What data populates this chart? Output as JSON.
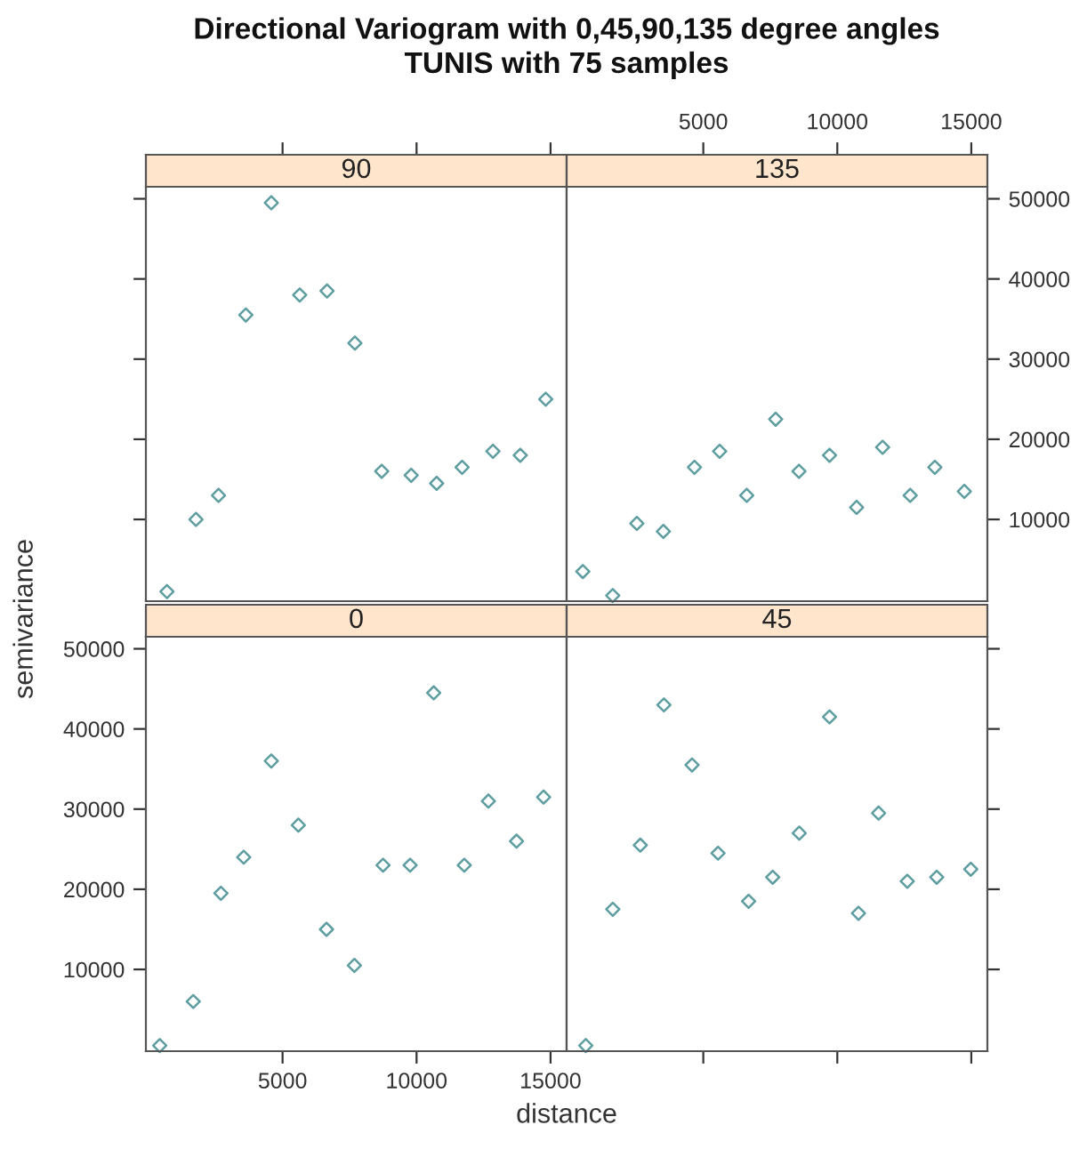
{
  "chart_data": [
    {
      "type": "scatter",
      "title": "90",
      "annotations": [
        "Directional Variogram with 0,45,90,135 degree angles\nTUNIS with 75 samples"
      ],
      "tick_labels": false,
      "marker": "diamond",
      "grid": false,
      "xlim": [
        -100,
        15600
      ],
      "ylim": [
        -200,
        51500
      ],
      "xticks": [
        5000,
        10000,
        15000
      ],
      "yticks": [
        10000,
        20000,
        30000,
        40000,
        50000
      ],
      "series": [
        {
          "color": "#5f9ea0",
          "x": [
            686,
            1770,
            2610,
            3630,
            4580,
            5640,
            6660,
            7700,
            8700,
            9800,
            10750,
            11700,
            12850,
            13870,
            14820
          ],
          "values": [
            1000,
            10000,
            13000,
            35500,
            49500,
            38000,
            38500,
            32000,
            16000,
            15500,
            14500,
            16500,
            18500,
            18000,
            25000
          ]
        }
      ]
    },
    {
      "type": "scatter",
      "title": "135",
      "marker": "diamond",
      "grid": false,
      "xlim": [
        -100,
        15600
      ],
      "ylim": [
        -200,
        51500
      ],
      "xticks": [
        5000,
        10000,
        15000
      ],
      "yticks": [
        10000,
        20000,
        30000,
        40000,
        50000
      ],
      "series": [
        {
          "color": "#5f9ea0",
          "x": [
            504,
            1620,
            2520,
            3510,
            4670,
            5610,
            6620,
            7700,
            8570,
            9710,
            10720,
            11690,
            12720,
            13640,
            14740
          ],
          "values": [
            3500,
            500,
            9500,
            8500,
            16500,
            18500,
            13000,
            22500,
            16000,
            18000,
            11500,
            19000,
            13000,
            16500,
            13500
          ]
        }
      ]
    },
    {
      "type": "scatter",
      "title": "0",
      "xlabel": "distance",
      "ylabel": "semivariance",
      "marker": "diamond",
      "grid": false,
      "xlim": [
        -100,
        15600
      ],
      "ylim": [
        -200,
        51500
      ],
      "xticks": [
        5000,
        10000,
        15000
      ],
      "yticks": [
        10000,
        20000,
        30000,
        40000,
        50000
      ],
      "series": [
        {
          "color": "#5f9ea0",
          "x": [
            417,
            1667,
            2700,
            3550,
            4580,
            5590,
            6640,
            7680,
            8750,
            9760,
            10640,
            11780,
            12680,
            13730,
            14740
          ],
          "values": [
            500,
            6000,
            19500,
            24000,
            36000,
            28000,
            15000,
            10500,
            23000,
            23000,
            44500,
            23000,
            31000,
            26000,
            31500
          ]
        }
      ]
    },
    {
      "type": "scatter",
      "title": "45",
      "tick_labels": false,
      "marker": "diamond",
      "grid": false,
      "xlim": [
        -100,
        15600
      ],
      "ylim": [
        -200,
        51500
      ],
      "xticks": [
        5000,
        10000,
        15000
      ],
      "yticks": [
        10000,
        20000,
        30000,
        40000,
        50000
      ],
      "series": [
        {
          "color": "#5f9ea0",
          "x": [
            614,
            1623,
            2650,
            3530,
            4580,
            5550,
            6690,
            7590,
            8580,
            9710,
            10790,
            11540,
            12610,
            13710,
            14980
          ],
          "values": [
            500,
            17500,
            25500,
            43000,
            35500,
            24500,
            18500,
            21500,
            27000,
            41500,
            17000,
            29500,
            21000,
            21500,
            22500
          ]
        }
      ]
    }
  ]
}
